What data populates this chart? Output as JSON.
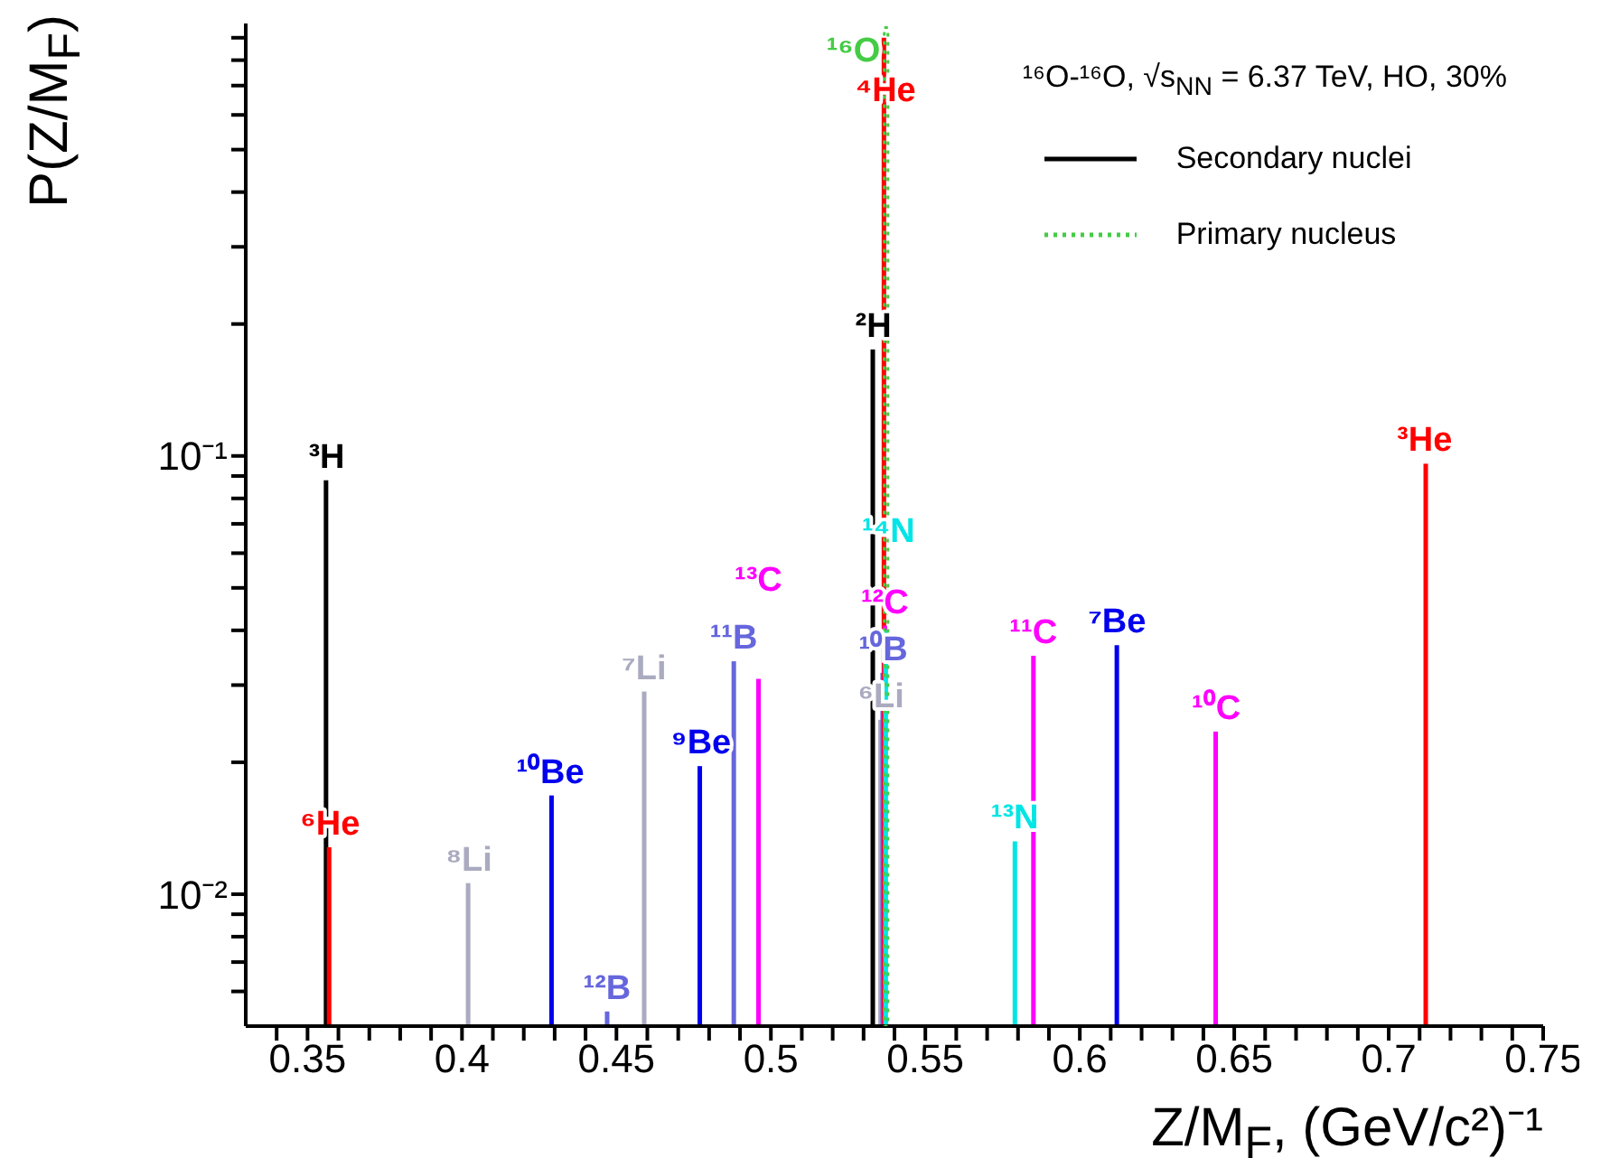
{
  "chart_data": {
    "type": "bar",
    "title": "¹⁶O-¹⁶O, √s$_{NN}$ = 6.37 TeV, HO, 30%",
    "xlabel": "Z/M$_{F}$, (GeV/c²)⁻¹",
    "ylabel": "P(Z/M$_{F}$)",
    "log": "y",
    "legend": "top right",
    "xlim": [
      0.33,
      0.75
    ],
    "xticks": [
      {
        "value": 0.34,
        "label": null
      },
      0.35,
      {
        "value": 0.36,
        "label": null
      },
      {
        "value": 0.37,
        "label": null
      },
      {
        "value": 0.38,
        "label": null
      },
      {
        "value": 0.39,
        "label": null
      },
      0.4,
      {
        "value": 0.41,
        "label": null
      },
      {
        "value": 0.42,
        "label": null
      },
      {
        "value": 0.43,
        "label": null
      },
      {
        "value": 0.44,
        "label": null
      },
      0.45,
      {
        "value": 0.46,
        "label": null
      },
      {
        "value": 0.47,
        "label": null
      },
      {
        "value": 0.48,
        "label": null
      },
      {
        "value": 0.49,
        "label": null
      },
      0.5,
      {
        "value": 0.51,
        "label": null
      },
      {
        "value": 0.52,
        "label": null
      },
      {
        "value": 0.53,
        "label": null
      },
      {
        "value": 0.54,
        "label": null
      },
      0.55,
      {
        "value": 0.56,
        "label": null
      },
      {
        "value": 0.57,
        "label": null
      },
      {
        "value": 0.58,
        "label": null
      },
      {
        "value": 0.59,
        "label": null
      },
      0.6,
      {
        "value": 0.61,
        "label": null
      },
      {
        "value": 0.62,
        "label": null
      },
      {
        "value": 0.63,
        "label": null
      },
      {
        "value": 0.64,
        "label": null
      },
      0.65,
      {
        "value": 0.66,
        "label": null
      },
      {
        "value": 0.67,
        "label": null
      },
      {
        "value": 0.68,
        "label": null
      },
      {
        "value": 0.69,
        "label": null
      },
      0.7,
      {
        "value": 0.71,
        "label": null
      },
      {
        "value": 0.72,
        "label": null
      },
      {
        "value": 0.73,
        "label": null
      },
      {
        "value": 0.74,
        "label": null
      },
      0.75
    ],
    "ylim": [
      0.005,
      0.97
    ],
    "yticks": [
      {
        "value": 0.006,
        "label": null
      },
      {
        "value": 0.007,
        "label": null
      },
      {
        "value": 0.008,
        "label": null
      },
      {
        "value": 0.009,
        "label": null
      },
      {
        "value": 0.01,
        "label": "10⁻²"
      },
      {
        "value": 0.02,
        "label": null
      },
      {
        "value": 0.03,
        "label": null
      },
      {
        "value": 0.04,
        "label": null
      },
      {
        "value": 0.05,
        "label": null
      },
      {
        "value": 0.06,
        "label": null
      },
      {
        "value": 0.07,
        "label": null
      },
      {
        "value": 0.08,
        "label": null
      },
      {
        "value": 0.09,
        "label": null
      },
      {
        "value": 0.1,
        "label": "10⁻¹"
      },
      {
        "value": 0.2,
        "label": null
      },
      {
        "value": 0.3,
        "label": null
      },
      {
        "value": 0.4,
        "label": null
      },
      {
        "value": 0.5,
        "label": null
      },
      {
        "value": 0.6,
        "label": null
      },
      {
        "value": 0.7,
        "label": null
      },
      {
        "value": 0.8,
        "label": null
      },
      {
        "value": 0.9,
        "label": null
      }
    ],
    "series": [
      {
        "name": "Secondary nuclei",
        "color": "#000000",
        "line_style": "solid",
        "x": [
          0.356,
          0.357,
          0.402,
          0.429,
          0.447,
          0.459,
          0.477,
          0.488,
          0.496,
          0.533,
          0.5355,
          0.5362,
          0.5366,
          0.5369,
          0.5372,
          0.579,
          0.585,
          0.612,
          0.644,
          0.712
        ],
        "values": [
          0.088,
          0.0128,
          0.0106,
          0.0168,
          0.0054,
          0.029,
          0.0196,
          0.034,
          0.031,
          0.175,
          0.025,
          0.032,
          0.9,
          0.041,
          0.04,
          0.0132,
          0.035,
          0.037,
          0.0235,
          0.096
        ],
        "colors": [
          "#000000",
          "#ff0000",
          "#aaaac0",
          "#0000ee",
          "#6666dd",
          "#aaaac0",
          "#0000ee",
          "#6666dd",
          "#ff00ff",
          "#000000",
          "#aaaac0",
          "#6666dd",
          "#ff0000",
          "#ff00ff",
          "#00e5e5",
          "#00e5e5",
          "#ff00ff",
          "#0000ee",
          "#ff00ff",
          "#ff0000"
        ],
        "value_labels": [
          "³H",
          "⁶He",
          "⁸Li",
          "¹⁰Be",
          "¹²B",
          "⁷Li",
          "⁹Be",
          "¹¹B",
          "¹³C",
          "²H",
          "⁶Li",
          "¹⁰B",
          "⁴He",
          "¹²C",
          "¹⁴N",
          "¹³N",
          "¹¹C",
          "⁷Be",
          "¹⁰C",
          "³He"
        ]
      },
      {
        "name": "Primary nucleus",
        "color": "#44cc44",
        "line_style": "dotted",
        "x": [
          0.537
        ],
        "values": [
          0.95
        ],
        "value_labels": [
          "¹⁶O"
        ]
      }
    ]
  }
}
